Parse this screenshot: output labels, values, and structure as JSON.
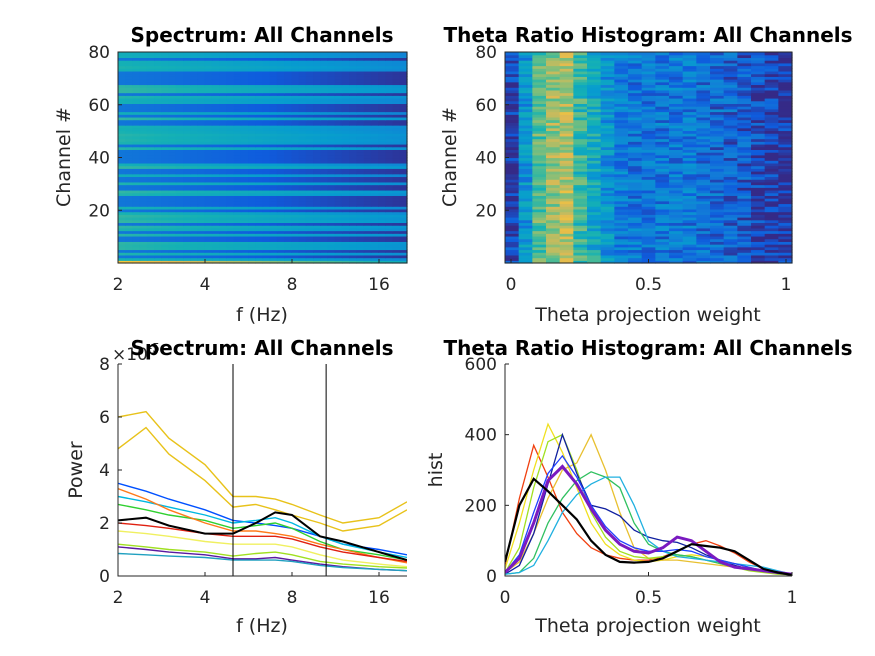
{
  "figure": {
    "panels": 4
  },
  "chart_data": [
    {
      "id": "spectrum-heatmap",
      "type": "heatmap",
      "title": "Spectrum: All Channels",
      "xlabel": "f (Hz)",
      "ylabel": "Channel #",
      "xscale": "log2",
      "xlim": [
        2,
        20
      ],
      "ylim": [
        0,
        80
      ],
      "xticks": [
        2,
        4,
        8,
        16
      ],
      "xtick_labels": [
        "2",
        "4",
        "8",
        "16"
      ],
      "yticks": [
        20,
        40,
        60,
        80
      ],
      "ytick_labels": [
        "20",
        "40",
        "60",
        "80"
      ],
      "n_channels": 78,
      "colormap": "parula",
      "notes": "Horizontal banding by channel; power decreases with frequency; channel 1 brightest (yellow) at low frequencies"
    },
    {
      "id": "theta-ratio-heatmap",
      "type": "heatmap",
      "title": "Theta Ratio Histogram: All Channels",
      "xlabel": "Theta projection weight",
      "ylabel": "Channel #",
      "xlim": [
        0,
        1
      ],
      "ylim": [
        0,
        80
      ],
      "xticks": [
        0,
        0.5,
        1
      ],
      "xtick_labels": [
        "0",
        "0.5",
        "1"
      ],
      "yticks": [
        20,
        40,
        60,
        80
      ],
      "ytick_labels": [
        "20",
        "40",
        "60",
        "80"
      ],
      "n_bins": 21,
      "n_channels": 78,
      "colormap": "parula",
      "notes": "Peak density at weights ~0.1-0.25 (yellow), fading toward 1"
    },
    {
      "id": "spectrum-lines",
      "type": "line",
      "title": "Spectrum: All Channels",
      "xlabel": "f (Hz)",
      "ylabel": "Power",
      "y_exponent_label": "×10",
      "y_exponent": "-5",
      "xscale": "log2",
      "xlim": [
        2,
        20
      ],
      "ylim": [
        0,
        8
      ],
      "xticks": [
        2,
        4,
        8,
        16
      ],
      "xtick_labels": [
        "2",
        "4",
        "8",
        "16"
      ],
      "yticks": [
        0,
        2,
        4,
        6,
        8
      ],
      "ytick_labels": [
        "0",
        "2",
        "4",
        "6",
        "8"
      ],
      "vlines": [
        5,
        10.5
      ],
      "x": [
        2,
        2.5,
        3,
        4,
        5,
        6,
        7,
        8,
        10,
        12,
        16,
        20
      ],
      "series": [
        {
          "name": "yellow-high-1",
          "color": "#e8c21a",
          "values": [
            6.0,
            6.2,
            5.2,
            4.2,
            3.0,
            3.0,
            2.9,
            2.7,
            2.3,
            2.0,
            2.2,
            2.8
          ]
        },
        {
          "name": "yellow-high-2",
          "color": "#e8c21a",
          "values": [
            4.8,
            5.6,
            4.6,
            3.6,
            2.6,
            2.7,
            2.5,
            2.3,
            2.0,
            1.7,
            1.9,
            2.5
          ]
        },
        {
          "name": "blue-top",
          "color": "#0050ff",
          "values": [
            3.5,
            3.2,
            2.9,
            2.5,
            2.1,
            2.0,
            1.9,
            1.8,
            1.5,
            1.2,
            1.0,
            0.8
          ]
        },
        {
          "name": "cyan",
          "color": "#00b8e0",
          "values": [
            3.0,
            2.8,
            2.6,
            2.3,
            2.0,
            2.1,
            2.2,
            2.0,
            1.5,
            1.2,
            0.9,
            0.7
          ]
        },
        {
          "name": "green",
          "color": "#30d030",
          "values": [
            2.7,
            2.5,
            2.3,
            2.1,
            1.8,
            1.9,
            2.0,
            1.8,
            1.3,
            1.0,
            0.8,
            0.6
          ]
        },
        {
          "name": "orange",
          "color": "#ff7a1a",
          "values": [
            3.3,
            2.9,
            2.5,
            2.0,
            1.7,
            1.7,
            1.6,
            1.5,
            1.2,
            1.0,
            0.7,
            0.5
          ]
        },
        {
          "name": "red",
          "color": "#e02010",
          "values": [
            2.0,
            1.9,
            1.8,
            1.6,
            1.5,
            1.5,
            1.5,
            1.4,
            1.1,
            0.9,
            0.7,
            0.55
          ]
        },
        {
          "name": "black-mean",
          "color": "#000000",
          "values": [
            2.1,
            2.2,
            1.9,
            1.6,
            1.6,
            2.0,
            2.4,
            2.3,
            1.5,
            1.3,
            0.9,
            0.6
          ]
        },
        {
          "name": "light-yellow",
          "color": "#f0f060",
          "values": [
            1.7,
            1.6,
            1.5,
            1.3,
            1.2,
            1.2,
            1.2,
            1.1,
            0.8,
            0.6,
            0.45,
            0.35
          ]
        },
        {
          "name": "lime",
          "color": "#a0e020",
          "values": [
            1.2,
            1.1,
            1.0,
            0.9,
            0.75,
            0.85,
            0.9,
            0.8,
            0.55,
            0.45,
            0.35,
            0.3
          ]
        },
        {
          "name": "purple-low",
          "color": "#5a1aa0",
          "values": [
            1.1,
            1.0,
            0.9,
            0.8,
            0.65,
            0.65,
            0.7,
            0.6,
            0.45,
            0.35,
            0.25,
            0.2
          ]
        },
        {
          "name": "teal-low",
          "color": "#20a0c0",
          "values": [
            0.85,
            0.8,
            0.75,
            0.7,
            0.6,
            0.6,
            0.6,
            0.55,
            0.4,
            0.32,
            0.25,
            0.2
          ]
        }
      ]
    },
    {
      "id": "theta-ratio-lines",
      "type": "line",
      "title": "Theta Ratio Histogram: All Channels",
      "xlabel": "Theta projection weight",
      "ylabel": "hist",
      "xlim": [
        0,
        1
      ],
      "ylim": [
        0,
        600
      ],
      "xticks": [
        0,
        0.5,
        1
      ],
      "xtick_labels": [
        "0",
        "0.5",
        "1"
      ],
      "yticks": [
        0,
        200,
        400,
        600
      ],
      "ytick_labels": [
        "0",
        "200",
        "400",
        "600"
      ],
      "x": [
        0,
        0.05,
        0.1,
        0.15,
        0.2,
        0.25,
        0.3,
        0.35,
        0.4,
        0.45,
        0.5,
        0.55,
        0.6,
        0.65,
        0.7,
        0.75,
        0.8,
        0.85,
        0.9,
        0.95,
        1.0
      ],
      "series": [
        {
          "name": "red-orange",
          "color": "#f04010",
          "values": [
            30,
            220,
            370,
            280,
            180,
            120,
            80,
            60,
            50,
            45,
            45,
            55,
            70,
            90,
            100,
            85,
            65,
            40,
            20,
            10,
            5
          ]
        },
        {
          "name": "yellow-peak",
          "color": "#f0e020",
          "values": [
            20,
            150,
            300,
            430,
            350,
            250,
            150,
            90,
            60,
            45,
            40,
            45,
            55,
            60,
            55,
            45,
            35,
            25,
            15,
            10,
            5
          ]
        },
        {
          "name": "yellow-late",
          "color": "#e8c030",
          "values": [
            10,
            40,
            120,
            220,
            300,
            320,
            400,
            300,
            180,
            80,
            50,
            45,
            45,
            40,
            35,
            30,
            25,
            20,
            15,
            10,
            5
          ]
        },
        {
          "name": "lime",
          "color": "#a0e020",
          "values": [
            10,
            80,
            250,
            380,
            400,
            300,
            180,
            110,
            70,
            55,
            50,
            55,
            60,
            55,
            45,
            35,
            25,
            15,
            10,
            5,
            3
          ]
        },
        {
          "name": "navy-sharp",
          "color": "#1020a0",
          "values": [
            5,
            30,
            120,
            260,
            400,
            290,
            200,
            190,
            170,
            130,
            110,
            100,
            95,
            80,
            60,
            45,
            30,
            20,
            15,
            10,
            5
          ]
        },
        {
          "name": "green-mid",
          "color": "#30c060",
          "values": [
            5,
            10,
            50,
            150,
            220,
            270,
            295,
            280,
            250,
            150,
            90,
            70,
            60,
            55,
            45,
            35,
            25,
            20,
            15,
            10,
            5
          ]
        },
        {
          "name": "cyan-mid",
          "color": "#20b0e0",
          "values": [
            5,
            10,
            30,
            100,
            180,
            230,
            260,
            280,
            280,
            200,
            100,
            70,
            55,
            50,
            45,
            40,
            35,
            30,
            25,
            15,
            5
          ]
        },
        {
          "name": "blue-main",
          "color": "#2040ff",
          "values": [
            10,
            60,
            180,
            290,
            340,
            280,
            200,
            140,
            100,
            80,
            70,
            70,
            75,
            70,
            55,
            45,
            35,
            25,
            15,
            10,
            5
          ]
        },
        {
          "name": "purple-thick",
          "color": "#7a1ac0",
          "values": [
            10,
            50,
            150,
            270,
            310,
            260,
            190,
            130,
            90,
            70,
            65,
            80,
            110,
            100,
            70,
            40,
            25,
            20,
            15,
            10,
            5
          ]
        },
        {
          "name": "black-mean",
          "color": "#000000",
          "values": [
            40,
            200,
            275,
            240,
            200,
            160,
            100,
            60,
            40,
            38,
            40,
            50,
            70,
            90,
            85,
            80,
            70,
            45,
            20,
            10,
            3
          ]
        }
      ]
    }
  ]
}
